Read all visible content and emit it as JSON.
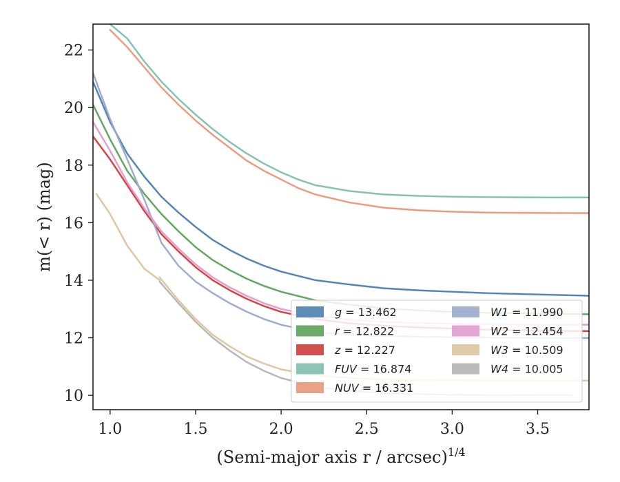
{
  "chart_data": {
    "type": "line",
    "xlabel": "(Semi-major axis r / arcsec)",
    "xlabel_sup": "1/4",
    "ylabel": "m(< r) (mag)",
    "xlim": [
      0.9,
      3.8
    ],
    "ylim": [
      22.9,
      9.5
    ],
    "y_inverted": true,
    "grid": false,
    "legend_position": "lower-right",
    "x_ticks": [
      1.0,
      1.5,
      2.0,
      2.5,
      3.0,
      3.5
    ],
    "x_tick_labels": [
      "1.0",
      "1.5",
      "2.0",
      "2.5",
      "3.0",
      "3.5"
    ],
    "y_ticks": [
      10,
      12,
      14,
      16,
      18,
      20,
      22
    ],
    "y_tick_labels": [
      "10",
      "12",
      "14",
      "16",
      "18",
      "20",
      "22"
    ],
    "series": [
      {
        "name": "g = 13.462",
        "label_sym": "g",
        "label_val": "= 13.462",
        "color": "#4c7fb0",
        "x": [
          0.9,
          1.0,
          1.1,
          1.2,
          1.3,
          1.4,
          1.5,
          1.6,
          1.7,
          1.8,
          1.9,
          2.0,
          2.2,
          2.4,
          2.6,
          2.8,
          3.0,
          3.2,
          3.4,
          3.6,
          3.8
        ],
        "y": [
          20.9,
          19.5,
          18.4,
          17.6,
          16.9,
          16.35,
          15.85,
          15.4,
          15.05,
          14.75,
          14.5,
          14.3,
          14.0,
          13.85,
          13.72,
          13.65,
          13.6,
          13.55,
          13.52,
          13.49,
          13.46
        ]
      },
      {
        "name": "r = 12.822",
        "label_sym": "r",
        "label_val": "= 12.822",
        "color": "#5aa25a",
        "x": [
          0.9,
          1.0,
          1.1,
          1.2,
          1.3,
          1.4,
          1.5,
          1.6,
          1.7,
          1.8,
          1.9,
          2.0,
          2.2,
          2.4,
          2.6,
          2.8,
          3.0,
          3.2,
          3.4,
          3.6,
          3.8
        ],
        "y": [
          20.1,
          18.9,
          17.8,
          17.0,
          16.3,
          15.7,
          15.15,
          14.7,
          14.35,
          14.05,
          13.8,
          13.6,
          13.3,
          13.15,
          13.02,
          12.95,
          12.9,
          12.87,
          12.85,
          12.83,
          12.82
        ]
      },
      {
        "name": "z = 12.227",
        "label_sym": "z",
        "label_val": "= 12.227",
        "color": "#cc3d3d",
        "x": [
          0.9,
          1.0,
          1.1,
          1.2,
          1.3,
          1.4,
          1.5,
          1.6,
          1.7,
          1.8,
          1.9,
          2.0,
          2.2,
          2.4,
          2.6,
          2.8,
          3.0,
          3.2,
          3.4,
          3.6,
          3.8
        ],
        "y": [
          19.0,
          18.2,
          17.3,
          16.4,
          15.6,
          15.0,
          14.45,
          14.0,
          13.65,
          13.35,
          13.1,
          12.9,
          12.65,
          12.5,
          12.42,
          12.36,
          12.32,
          12.28,
          12.26,
          12.24,
          12.23
        ]
      },
      {
        "name": "FUV = 16.874",
        "label_sym": "FUV",
        "label_val": "= 16.874",
        "color": "#7fbfad",
        "x": [
          1.0,
          1.1,
          1.2,
          1.3,
          1.4,
          1.5,
          1.6,
          1.7,
          1.8,
          1.9,
          2.0,
          2.1,
          2.2,
          2.4,
          2.6,
          2.8,
          3.0,
          3.2,
          3.4,
          3.6,
          3.8
        ],
        "y": [
          22.9,
          22.4,
          21.6,
          20.9,
          20.3,
          19.75,
          19.25,
          18.8,
          18.4,
          18.05,
          17.75,
          17.5,
          17.3,
          17.1,
          16.98,
          16.93,
          16.9,
          16.89,
          16.88,
          16.875,
          16.874
        ]
      },
      {
        "name": "NUV = 16.331",
        "label_sym": "NUV",
        "label_val": "= 16.331",
        "color": "#e8987a",
        "x": [
          1.0,
          1.1,
          1.2,
          1.3,
          1.4,
          1.5,
          1.6,
          1.7,
          1.8,
          1.9,
          2.0,
          2.1,
          2.2,
          2.4,
          2.6,
          2.8,
          3.0,
          3.2,
          3.4,
          3.6,
          3.8
        ],
        "y": [
          22.7,
          22.1,
          21.4,
          20.7,
          20.1,
          19.55,
          19.05,
          18.6,
          18.15,
          17.8,
          17.5,
          17.2,
          16.98,
          16.7,
          16.52,
          16.43,
          16.38,
          16.35,
          16.34,
          16.335,
          16.331
        ]
      },
      {
        "name": "W1 = 11.990",
        "label_sym": "W1",
        "label_val": "= 11.990",
        "color": "#9aa8cc",
        "x": [
          0.9,
          1.0,
          1.1,
          1.2,
          1.3,
          1.4,
          1.5,
          1.6,
          1.7,
          1.8,
          1.9,
          2.0,
          2.2,
          2.4,
          2.6,
          2.8,
          3.0,
          3.2,
          3.4,
          3.6,
          3.8
        ],
        "y": [
          21.2,
          19.6,
          18.2,
          16.8,
          15.3,
          14.5,
          13.95,
          13.55,
          13.2,
          12.9,
          12.65,
          12.45,
          12.2,
          12.1,
          12.06,
          12.04,
          12.02,
          12.01,
          12.0,
          11.99,
          11.99
        ]
      },
      {
        "name": "W2 = 12.454",
        "label_sym": "W2",
        "label_val": "= 12.454",
        "color": "#e09bcc",
        "x": [
          0.9,
          1.0,
          1.1,
          1.2,
          1.3,
          1.4,
          1.5,
          1.6,
          1.7,
          1.8,
          1.9,
          2.0,
          2.2,
          2.4,
          2.6,
          2.8,
          3.0,
          3.2,
          3.4,
          3.6,
          3.8
        ],
        "y": [
          19.5,
          18.5,
          17.4,
          16.5,
          15.7,
          15.1,
          14.55,
          14.1,
          13.75,
          13.45,
          13.2,
          13.0,
          12.75,
          12.62,
          12.55,
          12.51,
          12.49,
          12.47,
          12.46,
          12.455,
          12.454
        ]
      },
      {
        "name": "W3 = 10.509",
        "label_sym": "W3",
        "label_val": "= 10.509",
        "color": "#ddc49e",
        "x": [
          1.29,
          1.4,
          1.5,
          1.6,
          1.7,
          1.8,
          1.9,
          2.0,
          2.2,
          2.4,
          2.6,
          2.8,
          3.0,
          3.2,
          3.4,
          3.6,
          3.8
        ],
        "y": [
          14.1,
          13.3,
          12.65,
          12.1,
          11.7,
          11.35,
          11.1,
          10.9,
          10.7,
          10.6,
          10.55,
          10.53,
          10.52,
          10.515,
          10.512,
          10.51,
          10.509
        ]
      },
      {
        "name": "W4 = 10.005",
        "label_sym": "W4",
        "label_val": "= 10.005",
        "color": "#b4b4b4",
        "x": [
          1.29,
          1.4,
          1.5,
          1.6,
          1.7,
          1.8,
          1.9,
          2.0,
          2.2,
          2.4,
          2.6,
          2.8,
          3.0,
          3.2,
          3.4,
          3.6,
          3.7
        ],
        "y": [
          13.95,
          13.2,
          12.55,
          12.0,
          11.55,
          11.15,
          10.85,
          10.6,
          10.3,
          10.15,
          10.08,
          10.04,
          10.02,
          10.01,
          10.008,
          10.006,
          10.005
        ]
      },
      {
        "name": "W3 faint inner",
        "legend": false,
        "color": "#ddc49e",
        "x": [
          0.92,
          1.0,
          1.1,
          1.2,
          1.29
        ],
        "y": [
          17.0,
          16.3,
          15.2,
          14.4,
          14.0
        ]
      }
    ]
  }
}
